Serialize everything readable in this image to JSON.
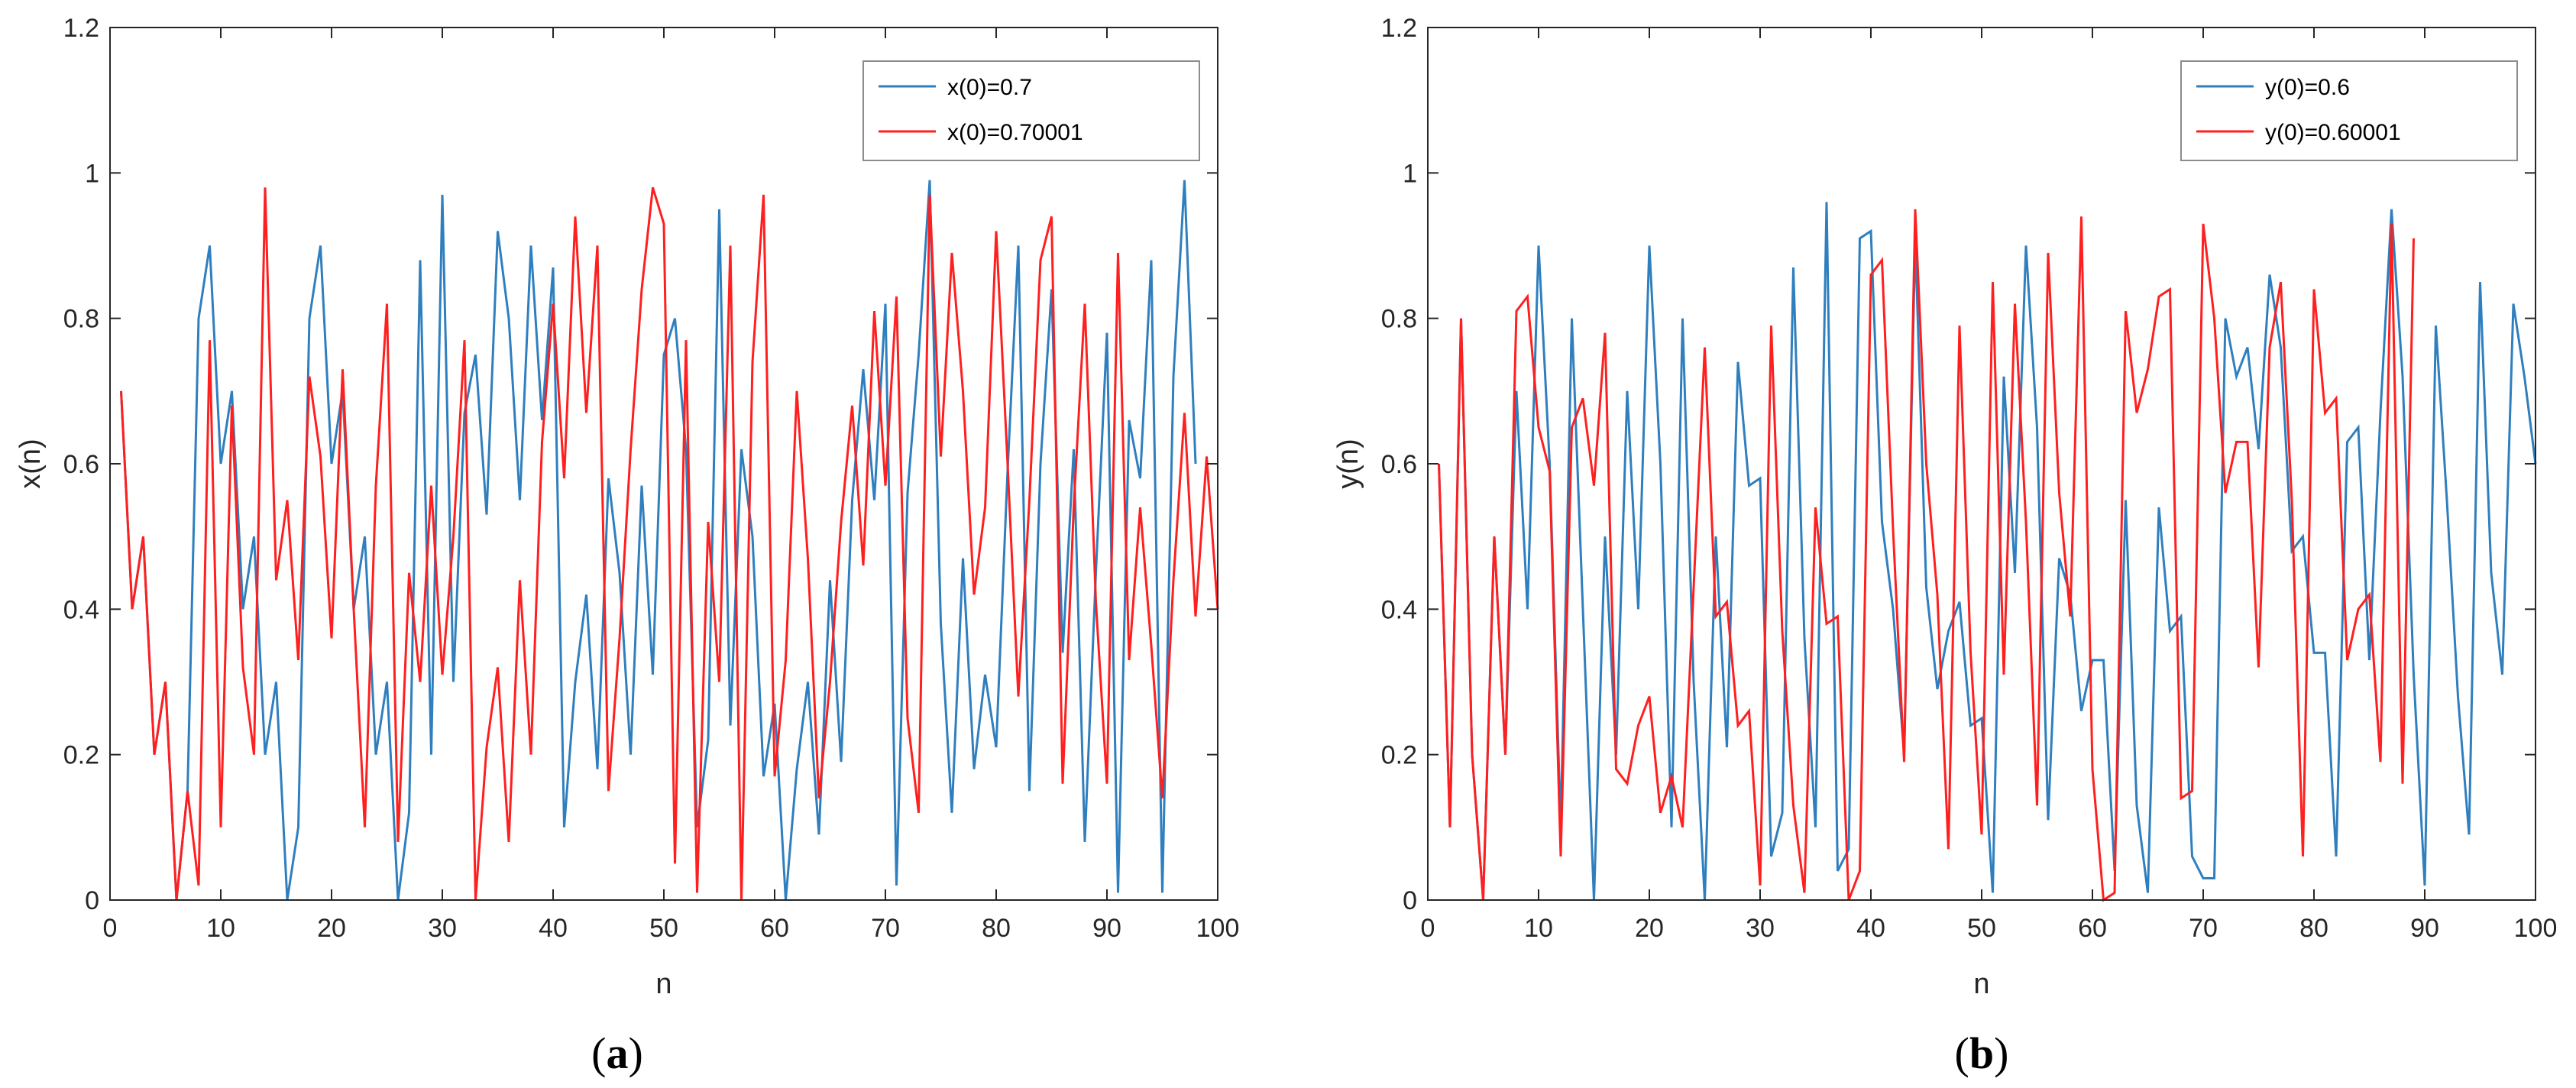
{
  "figure": {
    "captions": [
      {
        "open": "(",
        "letter": "a",
        "close": ")"
      },
      {
        "open": "(",
        "letter": "b",
        "close": ")"
      }
    ]
  },
  "colors": {
    "series1": "#2f7fbf",
    "series2": "#ff1f1f",
    "axes": "#262626",
    "frame": "#8c8c8c"
  },
  "chart_data": [
    {
      "type": "line",
      "title": "",
      "xlabel": "n",
      "ylabel": "x(n)",
      "xlim": [
        0,
        100
      ],
      "ylim": [
        0,
        1.2
      ],
      "xticks": [
        0,
        10,
        20,
        30,
        40,
        50,
        60,
        70,
        80,
        90,
        100
      ],
      "yticks": [
        0,
        0.2,
        0.4,
        0.6,
        0.8,
        1,
        1.2
      ],
      "ytick_labels": [
        "0",
        "0.2",
        "0.4",
        "0.6",
        "0.8",
        "1",
        "1.2"
      ],
      "legend_position": "top-right",
      "series": [
        {
          "name": "x(0)=0.7",
          "color": "#2f7fbf",
          "x_start": 1,
          "values": [
            0.7,
            0.4,
            0.5,
            0.2,
            0.3,
            0.0,
            0.15,
            0.8,
            0.9,
            0.6,
            0.7,
            0.4,
            0.5,
            0.2,
            0.3,
            0.0,
            0.1,
            0.8,
            0.9,
            0.6,
            0.7,
            0.4,
            0.5,
            0.2,
            0.3,
            0.0,
            0.12,
            0.88,
            0.2,
            0.97,
            0.3,
            0.67,
            0.75,
            0.53,
            0.92,
            0.8,
            0.55,
            0.9,
            0.66,
            0.87,
            0.1,
            0.3,
            0.42,
            0.18,
            0.58,
            0.45,
            0.2,
            0.57,
            0.31,
            0.75,
            0.8,
            0.62,
            0.1,
            0.22,
            0.95,
            0.24,
            0.62,
            0.5,
            0.17,
            0.27,
            0.0,
            0.18,
            0.3,
            0.09,
            0.44,
            0.19,
            0.55,
            0.73,
            0.55,
            0.82,
            0.02,
            0.56,
            0.75,
            0.99,
            0.38,
            0.12,
            0.47,
            0.18,
            0.31,
            0.21,
            0.58,
            0.9,
            0.15,
            0.6,
            0.84,
            0.34,
            0.62,
            0.08,
            0.45,
            0.78,
            0.01,
            0.66,
            0.58,
            0.88,
            0.01,
            0.72,
            0.99,
            0.6
          ]
        },
        {
          "name": "x(0)=0.70001",
          "color": "#ff1f1f",
          "x_start": 1,
          "values": [
            0.7,
            0.4,
            0.5,
            0.2,
            0.3,
            0.0,
            0.15,
            0.02,
            0.77,
            0.1,
            0.68,
            0.32,
            0.2,
            0.98,
            0.44,
            0.55,
            0.33,
            0.72,
            0.61,
            0.36,
            0.73,
            0.4,
            0.1,
            0.57,
            0.82,
            0.08,
            0.45,
            0.3,
            0.57,
            0.31,
            0.5,
            0.77,
            0.0,
            0.21,
            0.32,
            0.08,
            0.44,
            0.2,
            0.63,
            0.82,
            0.58,
            0.94,
            0.67,
            0.9,
            0.15,
            0.36,
            0.62,
            0.84,
            0.98,
            0.93,
            0.05,
            0.77,
            0.01,
            0.52,
            0.3,
            0.9,
            0.0,
            0.74,
            0.97,
            0.17,
            0.33,
            0.7,
            0.47,
            0.14,
            0.3,
            0.52,
            0.68,
            0.46,
            0.81,
            0.57,
            0.83,
            0.25,
            0.12,
            0.97,
            0.61,
            0.89,
            0.7,
            0.42,
            0.54,
            0.92,
            0.61,
            0.28,
            0.55,
            0.88,
            0.94,
            0.16,
            0.54,
            0.82,
            0.41,
            0.16,
            0.89,
            0.33,
            0.54,
            0.35,
            0.14,
            0.44,
            0.67,
            0.39,
            0.61,
            0.4
          ]
        }
      ]
    },
    {
      "type": "line",
      "title": "",
      "xlabel": "n",
      "ylabel": "y(n)",
      "xlim": [
        0,
        100
      ],
      "ylim": [
        0,
        1.2
      ],
      "xticks": [
        0,
        10,
        20,
        30,
        40,
        50,
        60,
        70,
        80,
        90,
        100
      ],
      "yticks": [
        0,
        0.2,
        0.4,
        0.6,
        0.8,
        1,
        1.2
      ],
      "ytick_labels": [
        "0",
        "0.2",
        "0.4",
        "0.6",
        "0.8",
        "1",
        "1.2"
      ],
      "legend_position": "top-right",
      "series": [
        {
          "name": "y(0)=0.6",
          "color": "#2f7fbf",
          "x_start": 1,
          "values": [
            0.6,
            0.1,
            0.8,
            0.2,
            0.0,
            0.5,
            0.2,
            0.7,
            0.4,
            0.9,
            0.6,
            0.1,
            0.8,
            0.4,
            0.0,
            0.5,
            0.2,
            0.7,
            0.4,
            0.9,
            0.6,
            0.1,
            0.8,
            0.3,
            0.0,
            0.5,
            0.21,
            0.74,
            0.57,
            0.58,
            0.06,
            0.12,
            0.87,
            0.36,
            0.1,
            0.96,
            0.04,
            0.07,
            0.91,
            0.92,
            0.52,
            0.4,
            0.2,
            0.91,
            0.43,
            0.29,
            0.37,
            0.41,
            0.24,
            0.25,
            0.01,
            0.72,
            0.45,
            0.9,
            0.65,
            0.11,
            0.47,
            0.42,
            0.26,
            0.33,
            0.33,
            0.04,
            0.55,
            0.13,
            0.01,
            0.54,
            0.37,
            0.39,
            0.06,
            0.03,
            0.03,
            0.8,
            0.72,
            0.76,
            0.62,
            0.86,
            0.76,
            0.48,
            0.5,
            0.34,
            0.34,
            0.06,
            0.63,
            0.65,
            0.33,
            0.67,
            0.95,
            0.72,
            0.31,
            0.02,
            0.79,
            0.55,
            0.28,
            0.09,
            0.85,
            0.45,
            0.31,
            0.82,
            0.72,
            0.6
          ]
        },
        {
          "name": "y(0)=0.60001",
          "color": "#ff1f1f",
          "x_start": 1,
          "values": [
            0.6,
            0.1,
            0.8,
            0.2,
            0.0,
            0.5,
            0.2,
            0.81,
            0.83,
            0.65,
            0.59,
            0.06,
            0.65,
            0.69,
            0.57,
            0.78,
            0.18,
            0.16,
            0.24,
            0.28,
            0.12,
            0.17,
            0.1,
            0.43,
            0.76,
            0.39,
            0.41,
            0.24,
            0.26,
            0.02,
            0.79,
            0.37,
            0.13,
            0.01,
            0.54,
            0.38,
            0.39,
            0.0,
            0.04,
            0.86,
            0.88,
            0.51,
            0.19,
            0.95,
            0.6,
            0.42,
            0.07,
            0.79,
            0.34,
            0.09,
            0.85,
            0.31,
            0.82,
            0.52,
            0.13,
            0.89,
            0.56,
            0.39,
            0.94,
            0.18,
            0.0,
            0.01,
            0.81,
            0.67,
            0.73,
            0.83,
            0.84,
            0.14,
            0.15,
            0.93,
            0.8,
            0.56,
            0.63,
            0.63,
            0.32,
            0.76,
            0.85,
            0.55,
            0.06,
            0.84,
            0.67,
            0.69,
            0.33,
            0.4,
            0.42,
            0.19,
            0.93,
            0.16,
            0.91
          ]
        }
      ]
    }
  ]
}
